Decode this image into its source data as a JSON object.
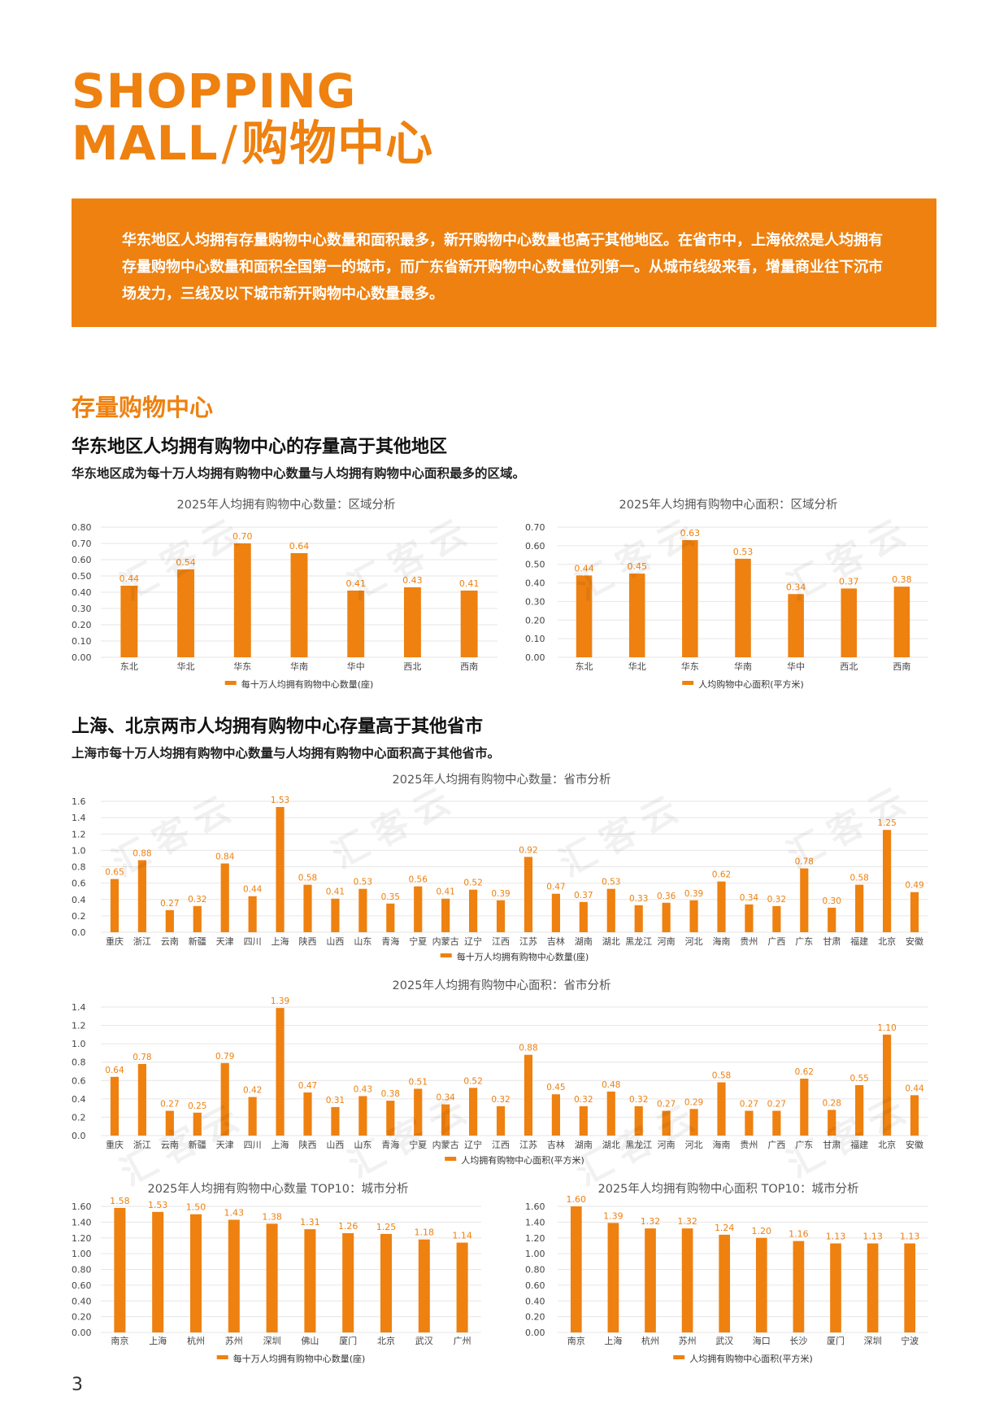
{
  "header": {
    "title_line1": "SHOPPING",
    "title_line2": "MALL",
    "title_slash": "/",
    "title_cn": "购物中心"
  },
  "banner": {
    "text": "华东地区人均拥有存量购物中心数量和面积最多，新开购物中心数量也高于其他地区。在省市中，上海依然是人均拥有存量购物中心数量和面积全国第一的城市，而广东省新开购物中心数量位列第一。从城市线级来看，增量商业往下沉市场发力，三线及以下城市新开购物中心数量最多。"
  },
  "section": {
    "heading": "存量购物中心",
    "sub1": "华东地区人均拥有购物中心的存量高于其他地区",
    "desc1": "华东地区成为每十万人均拥有购物中心数量与人均拥有购物中心面积最多的区域。",
    "sub2": "上海、北京两市人均拥有购物中心存量高于其他省市",
    "desc2": "上海市每十万人均拥有购物中心数量与人均拥有购物中心面积高于其他省市。"
  },
  "watermark": "汇客云",
  "page_number": "3",
  "colors": {
    "accent": "#ee8110",
    "grid": "#e6e6e6",
    "axis_text": "#444444"
  },
  "chart_data": [
    {
      "id": "region_count",
      "type": "bar",
      "title": "2025年人均拥有购物中心数量：区域分析",
      "categories": [
        "东北",
        "华北",
        "华东",
        "华南",
        "华中",
        "西北",
        "西南"
      ],
      "series": [
        {
          "name": "每十万人均拥有购物中心数量(座)",
          "values": [
            0.44,
            0.54,
            0.7,
            0.64,
            0.41,
            0.43,
            0.41
          ]
        }
      ],
      "ylim": [
        0,
        0.8
      ],
      "yticks": [
        "0.00",
        "0.10",
        "0.20",
        "0.30",
        "0.40",
        "0.50",
        "0.60",
        "0.70",
        "0.80"
      ],
      "labels": [
        "0.44",
        "0.54",
        "0.70",
        "0.64",
        "0.41",
        "0.43",
        "0.41"
      ],
      "legend": "bottom",
      "grid": true
    },
    {
      "id": "region_area",
      "type": "bar",
      "title": "2025年人均拥有购物中心面积：区域分析",
      "categories": [
        "东北",
        "华北",
        "华东",
        "华南",
        "华中",
        "西北",
        "西南"
      ],
      "series": [
        {
          "name": "人均购物中心面积(平方米)",
          "values": [
            0.44,
            0.45,
            0.63,
            0.53,
            0.34,
            0.37,
            0.38
          ]
        }
      ],
      "ylim": [
        0,
        0.7
      ],
      "yticks": [
        "0.00",
        "0.10",
        "0.20",
        "0.30",
        "0.40",
        "0.50",
        "0.60",
        "0.70"
      ],
      "labels": [
        "0.44",
        "0.45",
        "0.63",
        "0.53",
        "0.34",
        "0.37",
        "0.38"
      ],
      "legend": "bottom",
      "grid": true
    },
    {
      "id": "province_count",
      "type": "bar",
      "title": "2025年人均拥有购物中心数量：省市分析",
      "categories": [
        "重庆",
        "浙江",
        "云南",
        "新疆",
        "天津",
        "四川",
        "上海",
        "陕西",
        "山西",
        "山东",
        "青海",
        "宁夏",
        "内蒙古",
        "辽宁",
        "江西",
        "江苏",
        "吉林",
        "湖南",
        "湖北",
        "黑龙江",
        "河南",
        "河北",
        "海南",
        "贵州",
        "广西",
        "广东",
        "甘肃",
        "福建",
        "北京",
        "安徽"
      ],
      "series": [
        {
          "name": "每十万人均拥有购物中心数量(座)",
          "values": [
            0.65,
            0.88,
            0.27,
            0.32,
            0.84,
            0.44,
            1.53,
            0.58,
            0.41,
            0.53,
            0.35,
            0.56,
            0.41,
            0.52,
            0.39,
            0.92,
            0.47,
            0.37,
            0.53,
            0.33,
            0.36,
            0.39,
            0.62,
            0.34,
            0.32,
            0.78,
            0.3,
            0.58,
            1.25,
            0.49
          ]
        }
      ],
      "ylim": [
        0,
        1.6
      ],
      "yticks": [
        "0.0",
        "0.2",
        "0.4",
        "0.6",
        "0.8",
        "1.0",
        "1.2",
        "1.4",
        "1.6"
      ],
      "labels": [
        "0.65",
        "0.88",
        "0.27",
        "0.32",
        "0.84",
        "0.44",
        "1.53",
        "0.58",
        "0.41",
        "0.53",
        "0.35",
        "0.56",
        "0.41",
        "0.52",
        "0.39",
        "0.92",
        "0.47",
        "0.37",
        "0.53",
        "0.33",
        "0.36",
        "0.39",
        "0.62",
        "0.34",
        "0.32",
        "0.78",
        "0.30",
        "0.58",
        "1.25",
        "0.49"
      ],
      "legend": "bottom",
      "grid": true
    },
    {
      "id": "province_area",
      "type": "bar",
      "title": "2025年人均拥有购物中心面积：省市分析",
      "categories": [
        "重庆",
        "浙江",
        "云南",
        "新疆",
        "天津",
        "四川",
        "上海",
        "陕西",
        "山西",
        "山东",
        "青海",
        "宁夏",
        "内蒙古",
        "辽宁",
        "江西",
        "江苏",
        "吉林",
        "湖南",
        "湖北",
        "黑龙江",
        "河南",
        "河北",
        "海南",
        "贵州",
        "广西",
        "广东",
        "甘肃",
        "福建",
        "北京",
        "安徽"
      ],
      "series": [
        {
          "name": "人均拥有购物中心面积(平方米)",
          "values": [
            0.64,
            0.78,
            0.27,
            0.25,
            0.79,
            0.42,
            1.39,
            0.47,
            0.31,
            0.43,
            0.38,
            0.51,
            0.34,
            0.52,
            0.32,
            0.88,
            0.45,
            0.32,
            0.48,
            0.32,
            0.27,
            0.29,
            0.58,
            0.27,
            0.27,
            0.62,
            0.28,
            0.55,
            1.1,
            0.44
          ]
        }
      ],
      "ylim": [
        0,
        1.4
      ],
      "yticks": [
        "0.0",
        "0.2",
        "0.4",
        "0.6",
        "0.8",
        "1.0",
        "1.2",
        "1.4"
      ],
      "labels": [
        "0.64",
        "0.78",
        "0.27",
        "0.25",
        "0.79",
        "0.42",
        "1.39",
        "0.47",
        "0.31",
        "0.43",
        "0.38",
        "0.51",
        "0.34",
        "0.52",
        "0.32",
        "0.88",
        "0.45",
        "0.32",
        "0.48",
        "0.32",
        "0.27",
        "0.29",
        "0.58",
        "0.27",
        "0.27",
        "0.62",
        "0.28",
        "0.55",
        "1.10",
        "0.44"
      ],
      "legend": "bottom",
      "grid": true
    },
    {
      "id": "city_count_top10",
      "type": "bar",
      "title": "2025年人均拥有购物中心数量 TOP10：城市分析",
      "categories": [
        "南京",
        "上海",
        "杭州",
        "苏州",
        "深圳",
        "佛山",
        "厦门",
        "北京",
        "武汉",
        "广州"
      ],
      "series": [
        {
          "name": "每十万人均拥有购物中心数量(座)",
          "values": [
            1.58,
            1.53,
            1.5,
            1.43,
            1.38,
            1.31,
            1.26,
            1.25,
            1.18,
            1.14
          ]
        }
      ],
      "ylim": [
        0,
        1.6
      ],
      "yticks": [
        "0.00",
        "0.20",
        "0.40",
        "0.60",
        "0.80",
        "1.00",
        "1.20",
        "1.40",
        "1.60"
      ],
      "labels": [
        "1.58",
        "1.53",
        "1.50",
        "1.43",
        "1.38",
        "1.31",
        "1.26",
        "1.25",
        "1.18",
        "1.14"
      ],
      "legend": "bottom",
      "grid": true
    },
    {
      "id": "city_area_top10",
      "type": "bar",
      "title": "2025年人均拥有购物中心面积 TOP10：城市分析",
      "categories": [
        "南京",
        "上海",
        "杭州",
        "苏州",
        "武汉",
        "海口",
        "长沙",
        "厦门",
        "深圳",
        "宁波"
      ],
      "series": [
        {
          "name": "人均拥有购物中心面积(平方米)",
          "values": [
            1.6,
            1.39,
            1.32,
            1.32,
            1.24,
            1.2,
            1.16,
            1.13,
            1.13,
            1.13
          ]
        }
      ],
      "ylim": [
        0,
        1.6
      ],
      "yticks": [
        "0.00",
        "0.20",
        "0.40",
        "0.60",
        "0.80",
        "1.00",
        "1.20",
        "1.40",
        "1.60"
      ],
      "labels": [
        "1.60",
        "1.39",
        "1.32",
        "1.32",
        "1.24",
        "1.20",
        "1.16",
        "1.13",
        "1.13",
        "1.13"
      ],
      "legend": "bottom",
      "grid": true
    }
  ]
}
